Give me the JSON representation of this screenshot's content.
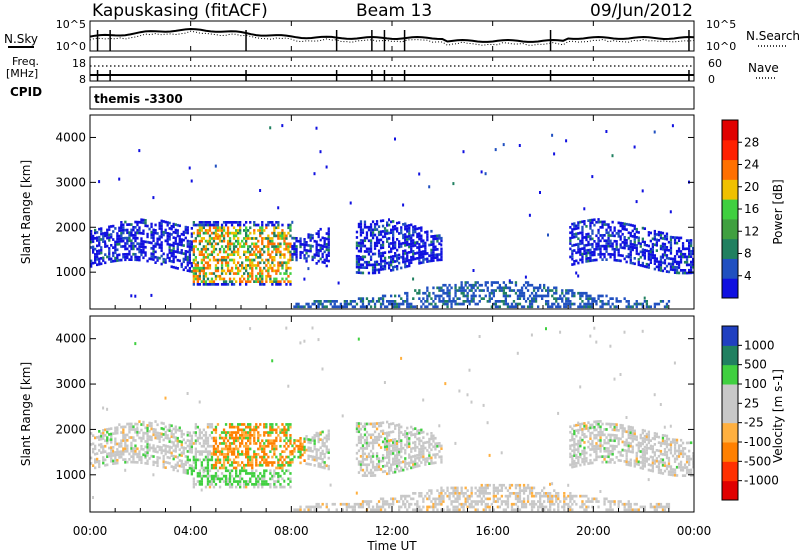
{
  "header": {
    "station": "Kapuskasing (fitACF)",
    "beam": "Beam 13",
    "date": "09/Jun/2012"
  },
  "left_labels": {
    "nsky": "N.Sky",
    "freq": "Freq.",
    "mhz": "[MHz]",
    "cpid": "CPID"
  },
  "right_labels": {
    "nsearch": "N.Search",
    "nave": "Nave"
  },
  "cpid_text": "themis -3300",
  "colors": {
    "power": [
      "#1010e0",
      "#2050c0",
      "#208060",
      "#40a040",
      "#40d040",
      "#f0c000",
      "#ff7000",
      "#ff2000",
      "#e00000"
    ],
    "velocity": [
      "#e00000",
      "#ff3000",
      "#ff8000",
      "#ffb040",
      "#c8c8c8",
      "#c8c8c8",
      "#40d040",
      "#208060",
      "#2040c0",
      "#1010e0"
    ]
  },
  "chart_data": [
    {
      "type": "line",
      "name": "noise",
      "y_ticks_left": [
        "10^5",
        "10^0"
      ],
      "y_ticks_right": [
        "10^5",
        "10^0"
      ]
    },
    {
      "type": "line",
      "name": "freq",
      "y_ticks_left": [
        "18",
        "8"
      ],
      "y_ticks_right": [
        "60",
        "0"
      ]
    },
    {
      "type": "heatmap",
      "name": "power",
      "ylabel": "Slant Range [km]",
      "y_ticks": [
        "4000",
        "3000",
        "2000",
        "1000"
      ],
      "y_range": [
        180,
        4500
      ],
      "colorbar_label": "Power [dB]",
      "colorbar_ticks": [
        "28",
        "24",
        "20",
        "16",
        "12",
        "8",
        "4"
      ]
    },
    {
      "type": "heatmap",
      "name": "velocity",
      "ylabel": "Slant Range [km]",
      "y_ticks": [
        "4000",
        "3000",
        "2000",
        "1000"
      ],
      "y_range": [
        180,
        4500
      ],
      "colorbar_label": "Velocity [m s-1]",
      "colorbar_ticks": [
        "1000",
        "500",
        "100",
        "25",
        "-25",
        "-100",
        "-500",
        "-1000"
      ],
      "xlabel": "Time UT",
      "x_ticks": [
        "00:00",
        "04:00",
        "08:00",
        "12:00",
        "16:00",
        "20:00",
        "00:00"
      ]
    }
  ]
}
